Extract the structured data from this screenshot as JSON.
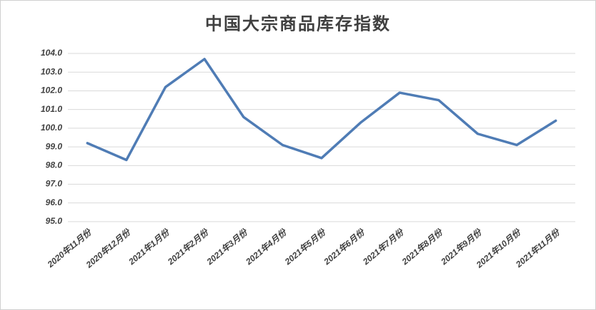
{
  "chart_data": {
    "type": "line",
    "title": "中国大宗商品库存指数",
    "categories": [
      "2020年11月份",
      "2020年12月份",
      "2021年1月份",
      "2021年2月份",
      "2021年3月份",
      "2021年4月份",
      "2021年5月份",
      "2021年6月份",
      "2021年7月份",
      "2021年8月份",
      "2021年9月份",
      "2021年10月份",
      "2021年11月份"
    ],
    "values": [
      99.2,
      98.3,
      102.2,
      103.7,
      100.6,
      99.1,
      98.4,
      100.3,
      101.9,
      101.5,
      99.7,
      99.1,
      100.4
    ],
    "color": "#4f7cb5",
    "ylim": [
      95,
      104
    ],
    "yticks": [
      {
        "value": 95,
        "label": "95.0"
      },
      {
        "value": 96,
        "label": "96.0"
      },
      {
        "value": 97,
        "label": "97.0"
      },
      {
        "value": 98,
        "label": "98.0"
      },
      {
        "value": 99,
        "label": "99.0"
      },
      {
        "value": 100,
        "label": "100.0"
      },
      {
        "value": 101,
        "label": "101.0"
      },
      {
        "value": 102,
        "label": "102.0"
      },
      {
        "value": 103,
        "label": "103.0"
      },
      {
        "value": 104,
        "label": "104.0"
      }
    ],
    "grid": true
  }
}
